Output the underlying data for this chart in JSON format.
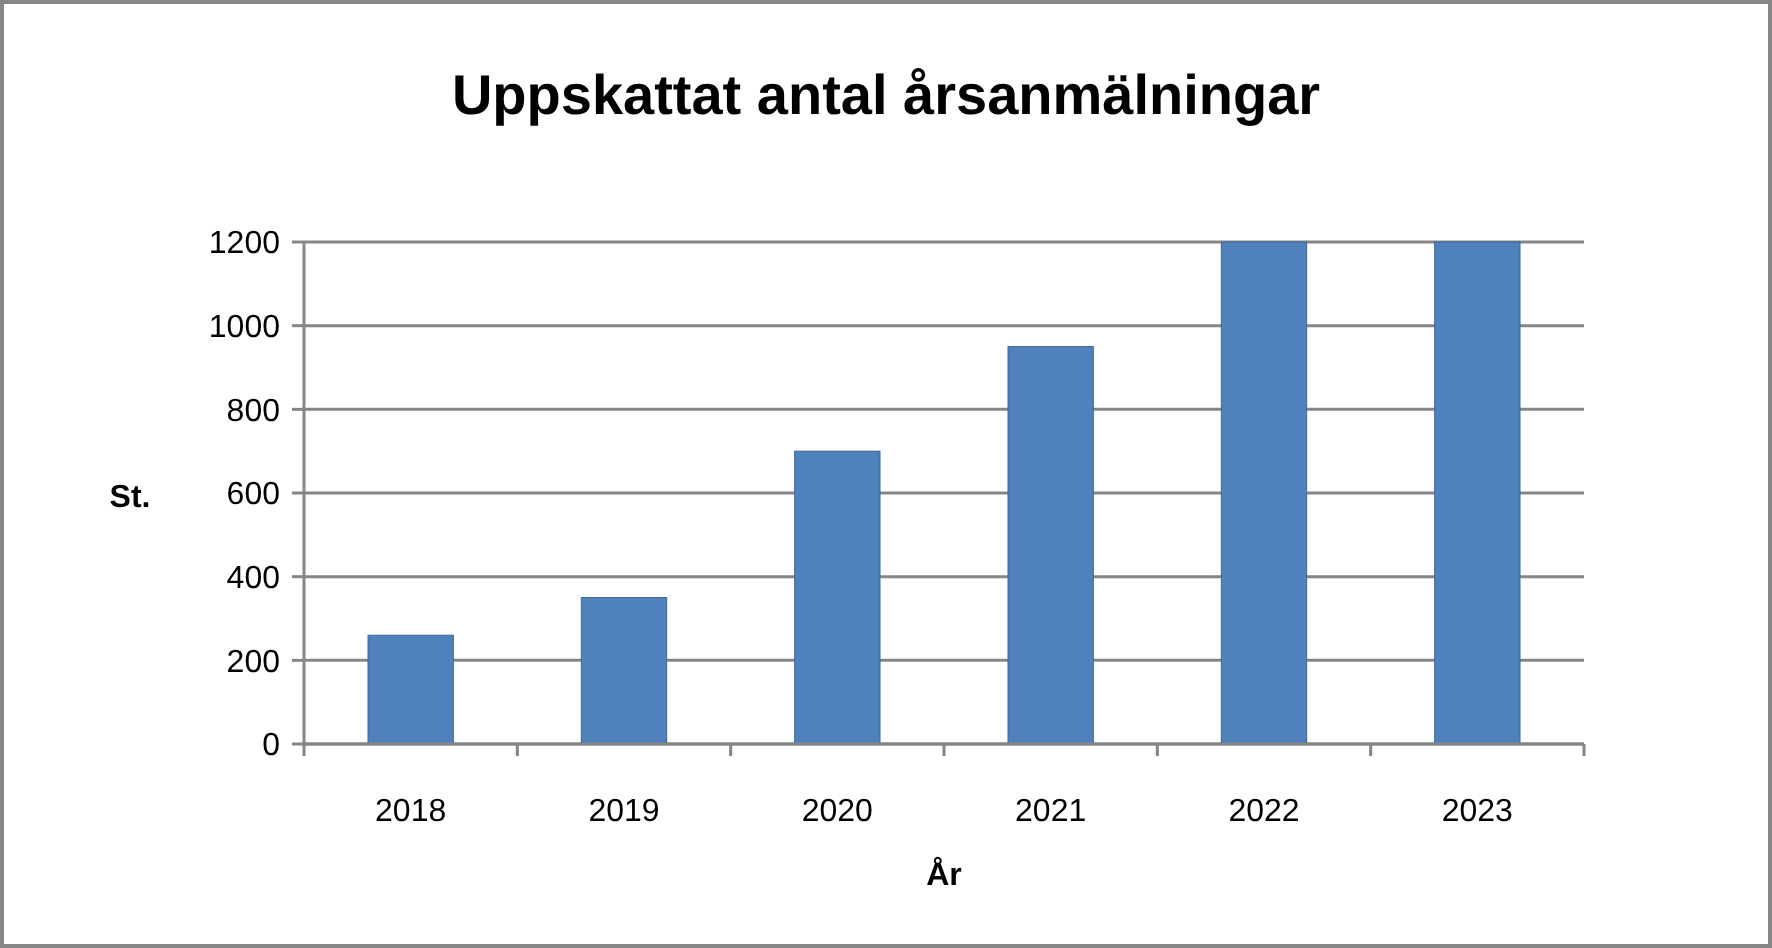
{
  "chart_data": {
    "type": "bar",
    "title": "Uppskattat antal årsanmälningar",
    "xlabel": "År",
    "ylabel": "St.",
    "categories": [
      "2018",
      "2019",
      "2020",
      "2021",
      "2022",
      "2023"
    ],
    "values": [
      260,
      350,
      700,
      950,
      1200,
      1200
    ],
    "color": "#4f81bd",
    "ylim": [
      0,
      1200
    ],
    "yticks": [
      0,
      200,
      400,
      600,
      800,
      1000,
      1200
    ],
    "grid": "y"
  }
}
